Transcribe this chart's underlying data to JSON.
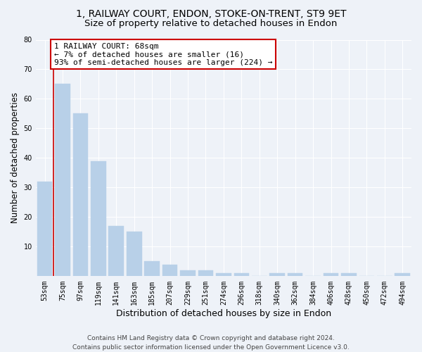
{
  "title1": "1, RAILWAY COURT, ENDON, STOKE-ON-TRENT, ST9 9ET",
  "title2": "Size of property relative to detached houses in Endon",
  "xlabel": "Distribution of detached houses by size in Endon",
  "ylabel": "Number of detached properties",
  "categories": [
    "53sqm",
    "75sqm",
    "97sqm",
    "119sqm",
    "141sqm",
    "163sqm",
    "185sqm",
    "207sqm",
    "229sqm",
    "251sqm",
    "274sqm",
    "296sqm",
    "318sqm",
    "340sqm",
    "362sqm",
    "384sqm",
    "406sqm",
    "428sqm",
    "450sqm",
    "472sqm",
    "494sqm"
  ],
  "values": [
    32,
    65,
    55,
    39,
    17,
    15,
    5,
    4,
    2,
    2,
    1,
    1,
    0,
    1,
    1,
    0,
    1,
    1,
    0,
    0,
    1
  ],
  "bar_color": "#b8d0e8",
  "bar_edge_color": "#b8d0e8",
  "highlight_line_color": "#cc0000",
  "annotation_text": "1 RAILWAY COURT: 68sqm\n← 7% of detached houses are smaller (16)\n93% of semi-detached houses are larger (224) →",
  "annotation_box_facecolor": "#ffffff",
  "annotation_box_edgecolor": "#cc0000",
  "ylim": [
    0,
    80
  ],
  "yticks": [
    0,
    10,
    20,
    30,
    40,
    50,
    60,
    70,
    80
  ],
  "footer_line1": "Contains HM Land Registry data © Crown copyright and database right 2024.",
  "footer_line2": "Contains public sector information licensed under the Open Government Licence v3.0.",
  "bg_color": "#eef2f8",
  "plot_bg_color": "#eef2f8",
  "grid_color": "#ffffff",
  "title_fontsize": 10,
  "subtitle_fontsize": 9.5,
  "annotation_fontsize": 8,
  "ylabel_fontsize": 8.5,
  "xlabel_fontsize": 9,
  "tick_fontsize": 7,
  "footer_fontsize": 6.5
}
